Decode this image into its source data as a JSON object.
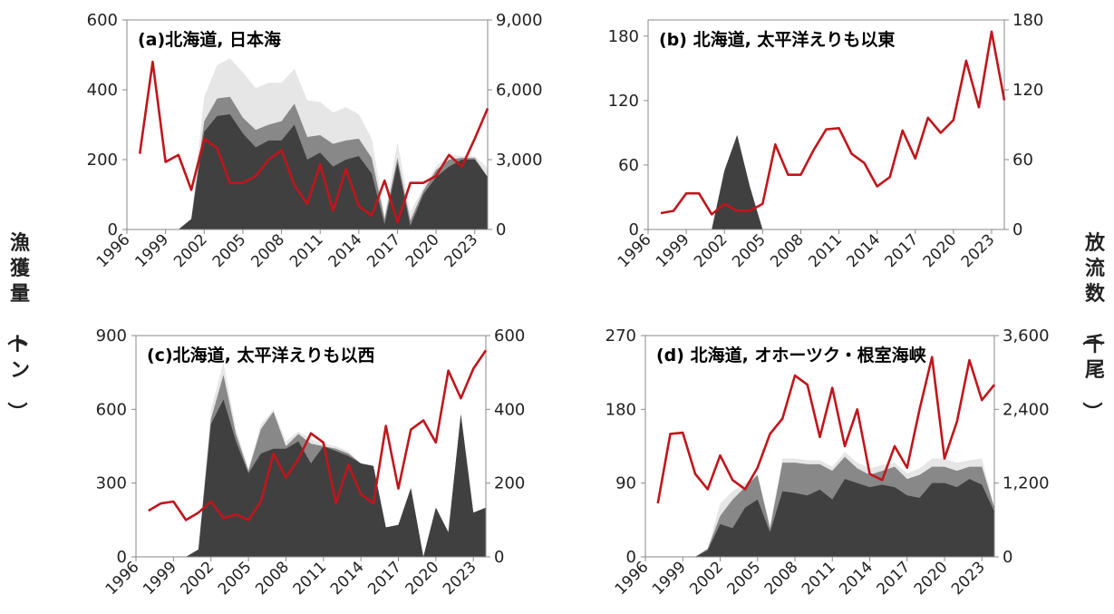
{
  "figure": {
    "ylabel_left": "漁獲量（トン）",
    "ylabel_right": "放流数（千尾）"
  },
  "chart_data": [
    {
      "type": "area",
      "title": "(a)北海道, 日本海",
      "x_tick_labels": [
        "1996",
        "1999",
        "2002",
        "2005",
        "2008",
        "2011",
        "2014",
        "2017",
        "2020",
        "2023"
      ],
      "y_left_ticks": [
        "0",
        "200",
        "400",
        "600"
      ],
      "y_right_ticks": [
        "0",
        "3,000",
        "6,000",
        "9,000"
      ],
      "ylim_left": [
        0,
        600
      ],
      "ylim_right": [
        0,
        9000
      ],
      "xlim": [
        1996,
        2024
      ],
      "area_years": [
        2000,
        2001,
        2002,
        2003,
        2004,
        2005,
        2006,
        2007,
        2008,
        2009,
        2010,
        2011,
        2012,
        2013,
        2014,
        2015,
        2016,
        2017,
        2018,
        2019,
        2020,
        2021,
        2022,
        2023,
        2024
      ],
      "area_series": [
        {
          "name": "",
          "color": "#e6e6e6",
          "values": [
            0,
            30,
            380,
            470,
            490,
            450,
            405,
            420,
            420,
            460,
            370,
            365,
            335,
            350,
            330,
            260,
            40,
            250,
            50,
            120,
            180,
            215,
            210,
            210,
            175
          ]
        },
        {
          "name": "",
          "color": "#888888",
          "values": [
            0,
            30,
            310,
            375,
            380,
            320,
            285,
            300,
            310,
            360,
            265,
            270,
            245,
            255,
            260,
            205,
            30,
            205,
            25,
            110,
            170,
            200,
            205,
            205,
            150
          ]
        },
        {
          "name": "",
          "color": "#404040",
          "values": [
            0,
            30,
            280,
            325,
            330,
            275,
            235,
            255,
            255,
            300,
            200,
            220,
            180,
            200,
            210,
            160,
            15,
            190,
            10,
            100,
            150,
            180,
            200,
            200,
            150
          ]
        }
      ],
      "line_years": [
        1997,
        1998,
        1999,
        2000,
        2001,
        2002,
        2003,
        2004,
        2005,
        2006,
        2007,
        2008,
        2009,
        2010,
        2011,
        2012,
        2013,
        2014,
        2015,
        2016,
        2017,
        2018,
        2019,
        2020,
        2021,
        2022,
        2023,
        2024
      ],
      "line_values": [
        3250,
        7200,
        2900,
        3200,
        1700,
        3900,
        3500,
        2000,
        2000,
        2300,
        3000,
        3400,
        1900,
        1100,
        2800,
        800,
        2600,
        1000,
        600,
        2100,
        300,
        2000,
        2000,
        2300,
        3200,
        2700,
        3900,
        5200
      ],
      "line_color": "#c0161c"
    },
    {
      "type": "area",
      "title": "(b) 北海道, 太平洋えりも以東",
      "x_tick_labels": [
        "1996",
        "1999",
        "2002",
        "2005",
        "2008",
        "2011",
        "2014",
        "2017",
        "2020",
        "2023"
      ],
      "y_left_ticks": [
        "0",
        "60",
        "120",
        "180"
      ],
      "y_right_ticks": [
        "0",
        "60",
        "120",
        "180"
      ],
      "ylim_left": [
        0,
        195
      ],
      "ylim_right": [
        0,
        180
      ],
      "xlim": [
        1996,
        2024
      ],
      "area_years": [
        2001,
        2002,
        2003,
        2004,
        2005
      ],
      "area_series": [
        {
          "name": "",
          "color": "#404040",
          "values": [
            0,
            55,
            88,
            40,
            0
          ]
        }
      ],
      "line_years": [
        1997,
        1998,
        1999,
        2000,
        2001,
        2002,
        2003,
        2004,
        2005,
        2006,
        2007,
        2008,
        2009,
        2010,
        2011,
        2012,
        2013,
        2014,
        2015,
        2016,
        2017,
        2018,
        2019,
        2020,
        2021,
        2022,
        2023,
        2024
      ],
      "line_values": [
        14,
        16,
        31,
        31,
        13,
        22,
        16,
        16,
        22,
        73,
        47,
        47,
        68,
        86,
        87,
        65,
        57,
        37,
        45,
        85,
        61,
        96,
        83,
        94,
        145,
        105,
        170,
        111
      ],
      "line_color": "#c0161c"
    },
    {
      "type": "area",
      "title": "(c)北海道, 太平洋えりも以西",
      "x_tick_labels": [
        "1996",
        "1999",
        "2002",
        "2005",
        "2008",
        "2011",
        "2014",
        "2017",
        "2020",
        "2023"
      ],
      "y_left_ticks": [
        "0",
        "300",
        "600",
        "900"
      ],
      "y_right_ticks": [
        "0",
        "200",
        "400",
        "600"
      ],
      "ylim_left": [
        0,
        900
      ],
      "ylim_right": [
        0,
        600
      ],
      "xlim": [
        1996,
        2024
      ],
      "area_years": [
        2000,
        2001,
        2002,
        2003,
        2004,
        2005,
        2006,
        2007,
        2008,
        2009,
        2010,
        2011,
        2012,
        2013,
        2014,
        2015,
        2016,
        2017,
        2018,
        2019,
        2020,
        2021,
        2022,
        2023,
        2024
      ],
      "area_series": [
        {
          "name": "",
          "color": "#e6e6e6",
          "values": [
            0,
            30,
            600,
            790,
            520,
            360,
            540,
            600,
            470,
            510,
            480,
            460,
            450,
            430,
            380,
            370,
            120,
            130,
            280,
            0,
            200,
            100,
            580,
            180,
            200
          ]
        },
        {
          "name": "",
          "color": "#888888",
          "values": [
            0,
            30,
            560,
            740,
            500,
            350,
            520,
            590,
            450,
            500,
            460,
            450,
            440,
            420,
            380,
            370,
            120,
            130,
            280,
            0,
            200,
            100,
            580,
            180,
            200
          ]
        },
        {
          "name": "",
          "color": "#404040",
          "values": [
            0,
            30,
            540,
            640,
            470,
            340,
            420,
            440,
            440,
            470,
            380,
            450,
            430,
            410,
            380,
            370,
            120,
            130,
            280,
            0,
            200,
            100,
            580,
            180,
            200
          ]
        }
      ],
      "line_years": [
        1997,
        1998,
        1999,
        2000,
        2001,
        2002,
        2003,
        2004,
        2005,
        2006,
        2007,
        2008,
        2009,
        2010,
        2011,
        2012,
        2013,
        2014,
        2015,
        2016,
        2017,
        2018,
        2019,
        2020,
        2021,
        2022,
        2023,
        2024
      ],
      "line_values": [
        125,
        145,
        150,
        100,
        120,
        150,
        105,
        115,
        100,
        150,
        280,
        215,
        265,
        335,
        310,
        145,
        250,
        170,
        145,
        355,
        185,
        345,
        370,
        310,
        505,
        430,
        510,
        560
      ],
      "line_color": "#c0161c"
    },
    {
      "type": "area",
      "title": "(d) 北海道, オホーツク・根室海峡",
      "x_tick_labels": [
        "1996",
        "1999",
        "2002",
        "2005",
        "2008",
        "2011",
        "2014",
        "2017",
        "2020",
        "2023"
      ],
      "y_left_ticks": [
        "0",
        "90",
        "180",
        "270"
      ],
      "y_right_ticks": [
        "0",
        "1,200",
        "2,400",
        "3,600"
      ],
      "ylim_left": [
        0,
        270
      ],
      "ylim_right": [
        0,
        3600
      ],
      "xlim": [
        1996,
        2024
      ],
      "area_years": [
        2000,
        2001,
        2002,
        2003,
        2004,
        2005,
        2006,
        2007,
        2008,
        2009,
        2010,
        2011,
        2012,
        2013,
        2014,
        2015,
        2016,
        2017,
        2018,
        2019,
        2020,
        2021,
        2022,
        2023,
        2024
      ],
      "area_series": [
        {
          "name": "",
          "color": "#e6e6e6",
          "values": [
            0,
            10,
            65,
            80,
            90,
            100,
            40,
            120,
            120,
            118,
            118,
            110,
            128,
            115,
            108,
            112,
            115,
            102,
            108,
            120,
            120,
            115,
            118,
            120,
            60
          ]
        },
        {
          "name": "",
          "color": "#888888",
          "values": [
            0,
            10,
            50,
            70,
            85,
            100,
            35,
            115,
            115,
            113,
            113,
            105,
            122,
            108,
            100,
            105,
            110,
            95,
            100,
            110,
            110,
            105,
            110,
            110,
            60
          ]
        },
        {
          "name": "",
          "color": "#404040",
          "values": [
            0,
            8,
            40,
            35,
            60,
            70,
            30,
            80,
            78,
            75,
            82,
            70,
            95,
            90,
            85,
            88,
            85,
            75,
            72,
            90,
            90,
            85,
            95,
            88,
            55
          ]
        }
      ],
      "line_years": [
        1997,
        1998,
        1999,
        2000,
        2001,
        2002,
        2003,
        2004,
        2005,
        2006,
        2007,
        2008,
        2009,
        2010,
        2011,
        2012,
        2013,
        2014,
        2015,
        2016,
        2017,
        2018,
        2019,
        2020,
        2021,
        2022,
        2023,
        2024
      ],
      "line_values": [
        870,
        2000,
        2020,
        1350,
        1100,
        1650,
        1250,
        1100,
        1450,
        2000,
        2250,
        2950,
        2800,
        1950,
        2750,
        1800,
        2400,
        1350,
        1250,
        1800,
        1450,
        2400,
        3250,
        1600,
        2200,
        3200,
        2550,
        2800
      ],
      "line_color": "#c0161c"
    }
  ]
}
